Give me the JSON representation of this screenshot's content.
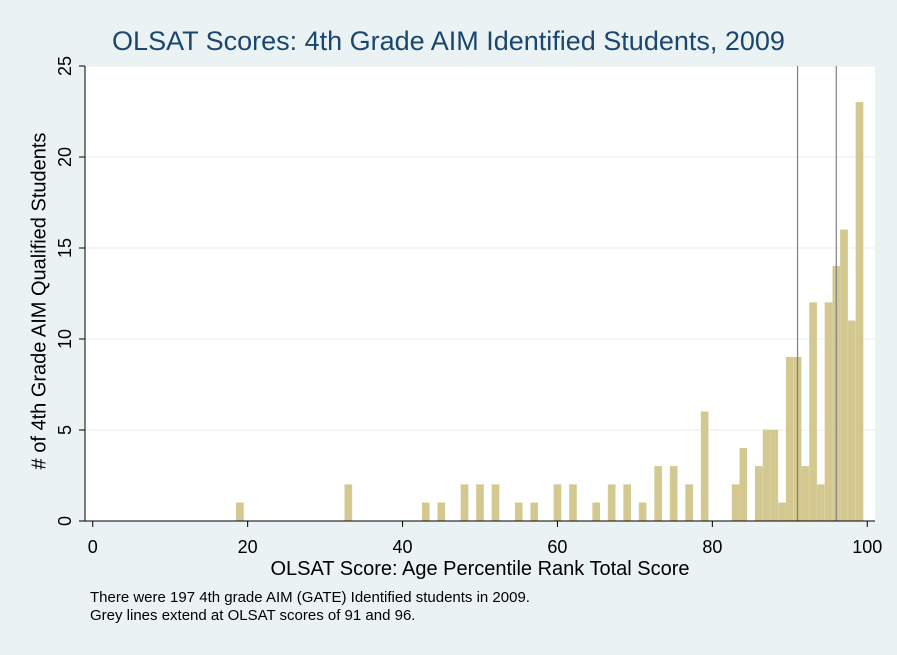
{
  "chart_data": {
    "type": "bar",
    "title": "OLSAT Scores: 4th Grade AIM Identified Students, 2009",
    "xlabel": "OLSAT Score: Age Percentile Rank Total Score",
    "ylabel": "# of 4th Grade AIM Qualified Students",
    "xlim": [
      -1,
      101
    ],
    "ylim": [
      0,
      25
    ],
    "xticks": [
      0,
      20,
      40,
      60,
      80,
      100
    ],
    "yticks": [
      0,
      5,
      10,
      15,
      20,
      25
    ],
    "grid": true,
    "bar_color": "#d3c88f",
    "x": [
      19,
      33,
      43,
      45,
      48,
      50,
      52,
      55,
      57,
      60,
      62,
      65,
      67,
      69,
      71,
      73,
      75,
      77,
      79,
      83,
      84,
      86,
      87,
      88,
      89,
      90,
      91,
      92,
      93,
      94,
      95,
      96,
      97,
      98,
      99
    ],
    "values": [
      1,
      2,
      1,
      1,
      2,
      2,
      2,
      1,
      1,
      2,
      2,
      1,
      2,
      2,
      1,
      3,
      3,
      2,
      6,
      2,
      4,
      3,
      5,
      5,
      1,
      9,
      9,
      3,
      12,
      2,
      12,
      14,
      16,
      11,
      23
    ],
    "reference_lines": {
      "x": [
        91,
        96
      ],
      "color": "#808080"
    },
    "notes": [
      "There were 197 4th grade AIM (GATE) Identified students in 2009.",
      "Grey lines extend at OLSAT scores of 91 and 96."
    ]
  }
}
